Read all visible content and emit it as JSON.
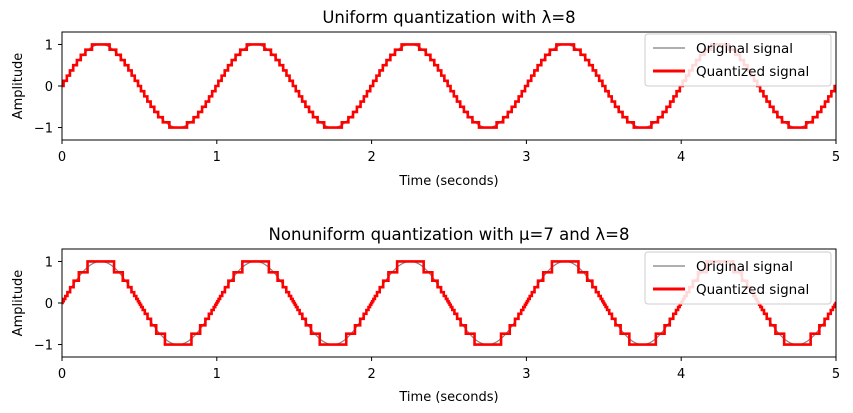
{
  "chart_data": [
    {
      "type": "line",
      "title": "Uniform quantization with λ=8",
      "xlabel": "Time (seconds)",
      "ylabel": "Amplitude",
      "xlim": [
        0,
        5
      ],
      "ylim": [
        -1.3,
        1.3
      ],
      "xticks": [
        "0",
        "1",
        "2",
        "3",
        "4",
        "5"
      ],
      "yticks": [
        "−1",
        "0",
        "1"
      ],
      "grid": false,
      "legend_position": "top-right",
      "signal": {
        "function": "sin",
        "frequency_hz": 1,
        "amplitude": 1
      },
      "quantization": {
        "scheme": "uniform",
        "lambda": 8
      },
      "series": [
        {
          "name": "Original signal",
          "color": "#7f7f7f"
        },
        {
          "name": "Quantized signal",
          "color": "#ff0000"
        }
      ]
    },
    {
      "type": "line",
      "title": "Nonuniform quantization with μ=7 and λ=8",
      "xlabel": "Time (seconds)",
      "ylabel": "Amplitude",
      "xlim": [
        0,
        5
      ],
      "ylim": [
        -1.3,
        1.3
      ],
      "xticks": [
        "0",
        "1",
        "2",
        "3",
        "4",
        "5"
      ],
      "yticks": [
        "−1",
        "0",
        "1"
      ],
      "grid": false,
      "legend_position": "top-right",
      "signal": {
        "function": "sin",
        "frequency_hz": 1,
        "amplitude": 1
      },
      "quantization": {
        "scheme": "mu-law",
        "mu": 7,
        "lambda": 8
      },
      "series": [
        {
          "name": "Original signal",
          "color": "#7f7f7f"
        },
        {
          "name": "Quantized signal",
          "color": "#ff0000"
        }
      ]
    }
  ]
}
